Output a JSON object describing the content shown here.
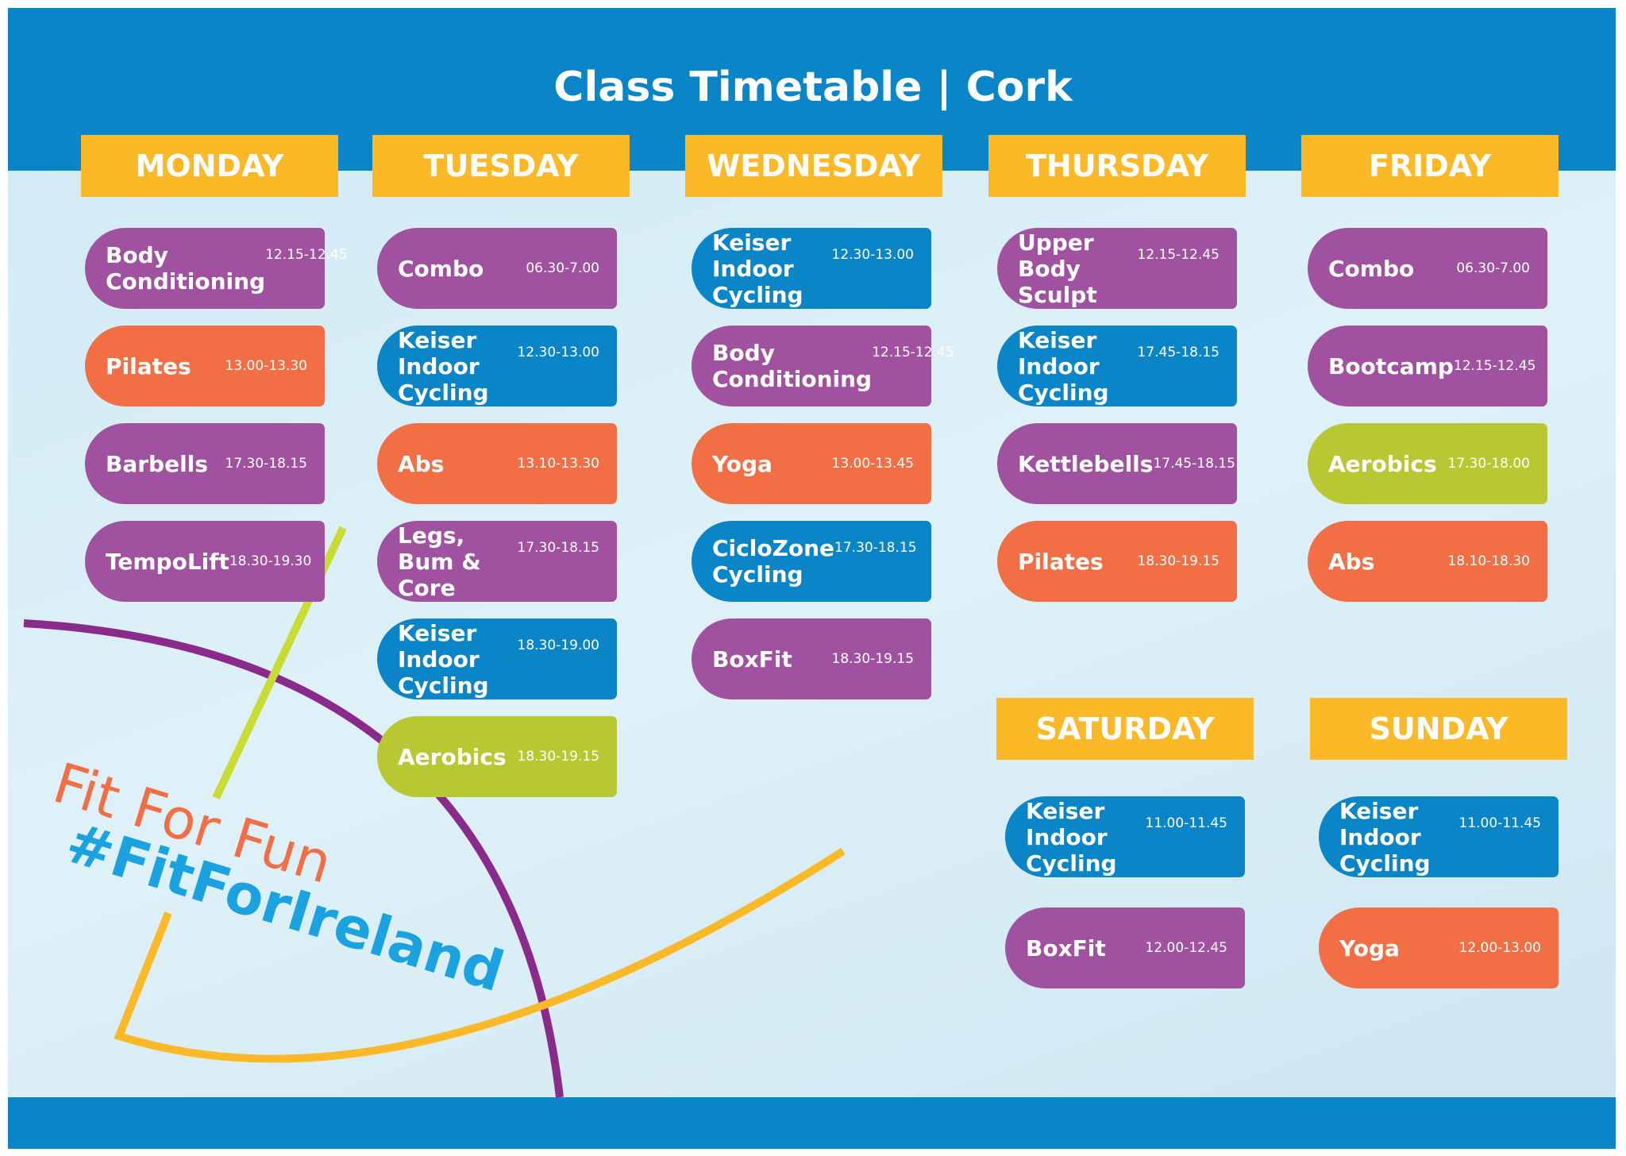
{
  "header": {
    "title": "Class Timetable | Cork"
  },
  "days": [
    {
      "name": "MONDAY",
      "classes": [
        {
          "name": "Body\nConditioning",
          "time": "12.15-12.45",
          "color": "#a052a0"
        },
        {
          "name": "Pilates",
          "time": "13.00-13.30",
          "color": "#f26f45"
        },
        {
          "name": "Barbells",
          "time": "17.30-18.15",
          "color": "#a052a0"
        },
        {
          "name": "TempoLift",
          "time": "18.30-19.30",
          "color": "#a052a0"
        }
      ]
    },
    {
      "name": "TUESDAY",
      "classes": [
        {
          "name": "Combo",
          "time": "06.30-7.00",
          "color": "#a052a0"
        },
        {
          "name": "Keiser\nIndoor Cycling",
          "time": "12.30-13.00",
          "color": "#0a86c8"
        },
        {
          "name": "Abs",
          "time": "13.10-13.30",
          "color": "#f26f45"
        },
        {
          "name": "Legs,\nBum & Core",
          "time": "17.30-18.15",
          "color": "#a052a0"
        },
        {
          "name": "Keiser\nIndoor Cycling",
          "time": "18.30-19.00",
          "color": "#0a86c8"
        },
        {
          "name": "Aerobics",
          "time": "18.30-19.15",
          "color": "#b8c832"
        }
      ]
    },
    {
      "name": "WEDNESDAY",
      "classes": [
        {
          "name": "Keiser\nIndoor Cycling",
          "time": "12.30-13.00",
          "color": "#0a86c8"
        },
        {
          "name": "Body\nConditioning",
          "time": "12.15-12.45",
          "color": "#a052a0"
        },
        {
          "name": "Yoga",
          "time": "13.00-13.45",
          "color": "#f26f45"
        },
        {
          "name": "CicloZone\nCycling",
          "time": "17.30-18.15",
          "color": "#0a86c8"
        },
        {
          "name": "BoxFit",
          "time": "18.30-19.15",
          "color": "#a052a0"
        }
      ]
    },
    {
      "name": "THURSDAY",
      "classes": [
        {
          "name": "Upper\nBody Sculpt",
          "time": "12.15-12.45",
          "color": "#a052a0"
        },
        {
          "name": "Keiser\nIndoor Cycling",
          "time": "17.45-18.15",
          "color": "#0a86c8"
        },
        {
          "name": "Kettlebells",
          "time": "17.45-18.15",
          "color": "#a052a0"
        },
        {
          "name": "Pilates",
          "time": "18.30-19.15",
          "color": "#f26f45"
        }
      ]
    },
    {
      "name": "FRIDAY",
      "classes": [
        {
          "name": "Combo",
          "time": "06.30-7.00",
          "color": "#a052a0"
        },
        {
          "name": "Bootcamp",
          "time": "12.15-12.45",
          "color": "#a052a0"
        },
        {
          "name": "Aerobics",
          "time": "17.30-18.00",
          "color": "#b8c832"
        },
        {
          "name": "Abs",
          "time": "18.10-18.30",
          "color": "#f26f45"
        }
      ]
    },
    {
      "name": "SATURDAY",
      "classes": [
        {
          "name": "Keiser\nIndoor Cycling",
          "time": "11.00-11.45",
          "color": "#0a86c8"
        },
        {
          "name": "BoxFit",
          "time": "12.00-12.45",
          "color": "#a052a0"
        }
      ]
    },
    {
      "name": "SUNDAY",
      "classes": [
        {
          "name": "Keiser\nIndoor Cycling",
          "time": "11.00-11.45",
          "color": "#0a86c8"
        },
        {
          "name": "Yoga",
          "time": "12.00-13.00",
          "color": "#f26f45"
        }
      ]
    }
  ],
  "slogans": [
    "Fit For Fun",
    "#FitForIreland"
  ]
}
